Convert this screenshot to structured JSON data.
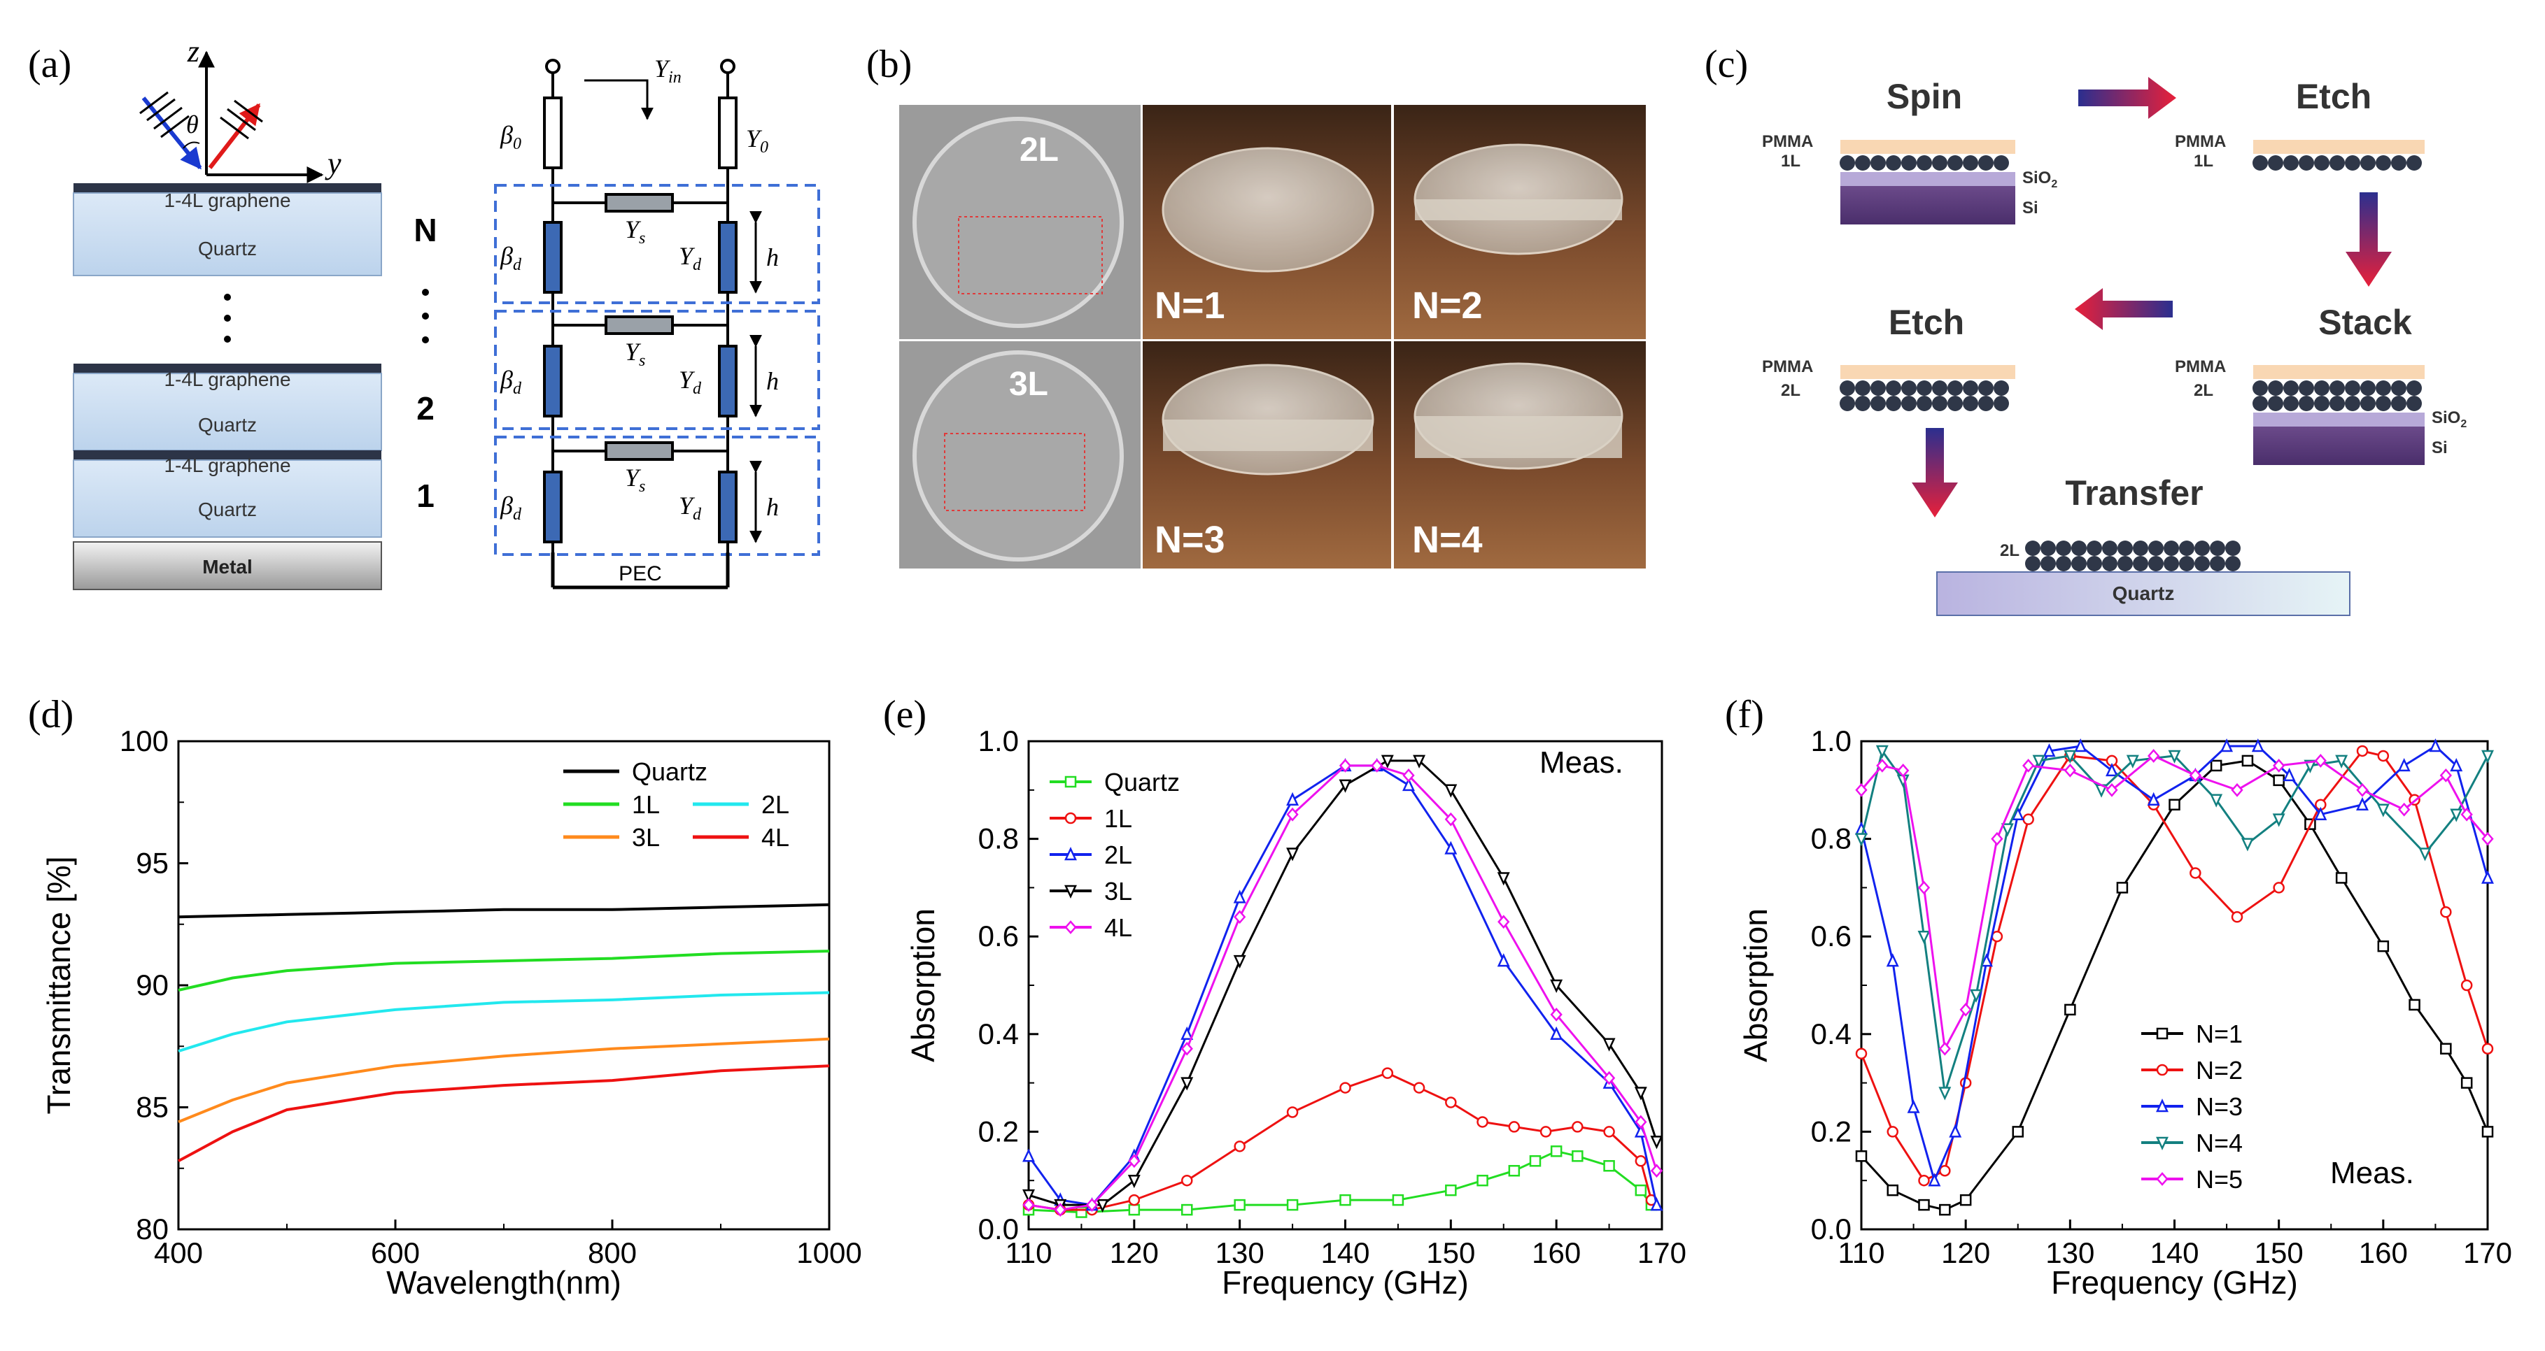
{
  "panel_labels": [
    "(a)",
    "(b)",
    "(c)",
    "(d)",
    "(e)",
    "(f)"
  ],
  "panel_a": {
    "axis_z": "z",
    "axis_y": "y",
    "angle": "θ",
    "layers": [
      {
        "graphene": "1-4L graphene",
        "substrate": "Quartz"
      },
      {
        "graphene": "1-4L graphene",
        "substrate": "Quartz"
      },
      {
        "graphene": "1-4L graphene",
        "substrate": "Quartz"
      }
    ],
    "metal": "Metal",
    "layer_numbers": [
      "N",
      "2",
      "1"
    ],
    "circuit": {
      "y_in": "Y",
      "y_in_sub": "in",
      "y0": "Y",
      "y0_sub": "0",
      "beta0": "β",
      "beta0_sub": "0",
      "beta_d": "β",
      "beta_d_sub": "d",
      "y_s": "Y",
      "y_s_sub": "s",
      "y_d": "Y",
      "y_d_sub": "d",
      "h": "h",
      "pec": "PEC"
    }
  },
  "panel_b": {
    "labels": [
      "2L",
      "3L",
      "N=1",
      "N=2",
      "N=3",
      "N=4"
    ]
  },
  "panel_c": {
    "steps": [
      "Spin",
      "Etch",
      "Stack",
      "Etch",
      "Transfer"
    ],
    "pmma": "PMMA",
    "one_l": "1L",
    "two_l": "2L",
    "sio2": "SiO",
    "sio2_sub": "2",
    "si": "Si",
    "quartz": "Quartz"
  },
  "chart_data": [
    {
      "panel": "(d)",
      "type": "line",
      "xlabel": "Wavelength(nm)",
      "ylabel": "Transmittance [%]",
      "xlim": [
        400,
        1000
      ],
      "ylim": [
        80,
        100
      ],
      "xticks": [
        400,
        600,
        800,
        1000
      ],
      "yticks": [
        80,
        85,
        90,
        95,
        100
      ],
      "legend": [
        "Quartz",
        "1L",
        "3L",
        "2L",
        "4L"
      ],
      "series": [
        {
          "name": "Quartz",
          "color": "#000000",
          "x": [
            400,
            500,
            600,
            700,
            800,
            900,
            1000
          ],
          "values": [
            92.8,
            92.9,
            93.0,
            93.1,
            93.1,
            93.2,
            93.3
          ]
        },
        {
          "name": "1L",
          "color": "#22dd22",
          "x": [
            400,
            450,
            500,
            600,
            700,
            800,
            900,
            1000
          ],
          "values": [
            89.8,
            90.3,
            90.6,
            90.9,
            91.0,
            91.1,
            91.3,
            91.4
          ]
        },
        {
          "name": "2L",
          "color": "#22e8ee",
          "x": [
            400,
            450,
            500,
            600,
            700,
            800,
            900,
            1000
          ],
          "values": [
            87.3,
            88.0,
            88.5,
            89.0,
            89.3,
            89.4,
            89.6,
            89.7
          ]
        },
        {
          "name": "3L",
          "color": "#ff8a1c",
          "x": [
            400,
            450,
            500,
            600,
            700,
            800,
            900,
            1000
          ],
          "values": [
            84.4,
            85.3,
            86.0,
            86.7,
            87.1,
            87.4,
            87.6,
            87.8
          ]
        },
        {
          "name": "4L",
          "color": "#ee1111",
          "x": [
            400,
            450,
            500,
            600,
            700,
            800,
            900,
            1000
          ],
          "values": [
            82.8,
            84.0,
            84.9,
            85.6,
            85.9,
            86.1,
            86.5,
            86.7
          ]
        }
      ]
    },
    {
      "panel": "(e)",
      "type": "line",
      "xlabel": "Frequency (GHz)",
      "ylabel": "Absorption",
      "annotation": "Meas.",
      "xlim": [
        110,
        170
      ],
      "ylim": [
        0,
        1.0
      ],
      "xticks": [
        110,
        120,
        130,
        140,
        150,
        160,
        170
      ],
      "yticks": [
        0.0,
        0.2,
        0.4,
        0.6,
        0.8,
        1.0
      ],
      "legend": [
        "Quartz",
        "1L",
        "2L",
        "3L",
        "4L"
      ],
      "series": [
        {
          "name": "Quartz",
          "color": "#22dd22",
          "marker": "square",
          "x": [
            110,
            115,
            120,
            125,
            130,
            135,
            140,
            145,
            150,
            153,
            156,
            158,
            160,
            162,
            165,
            168,
            169
          ],
          "values": [
            0.04,
            0.035,
            0.04,
            0.04,
            0.05,
            0.05,
            0.06,
            0.06,
            0.08,
            0.1,
            0.12,
            0.14,
            0.16,
            0.15,
            0.13,
            0.08,
            0.05
          ]
        },
        {
          "name": "1L",
          "color": "#ee1111",
          "marker": "circle",
          "x": [
            110,
            113,
            116,
            120,
            125,
            130,
            135,
            140,
            144,
            147,
            150,
            153,
            156,
            159,
            162,
            165,
            168,
            169
          ],
          "values": [
            0.05,
            0.04,
            0.04,
            0.06,
            0.1,
            0.17,
            0.24,
            0.29,
            0.32,
            0.29,
            0.26,
            0.22,
            0.21,
            0.2,
            0.21,
            0.2,
            0.14,
            0.06
          ]
        },
        {
          "name": "2L",
          "color": "#1122ee",
          "marker": "triangle-up",
          "x": [
            110,
            113,
            116,
            120,
            125,
            130,
            135,
            140,
            143,
            146,
            150,
            155,
            160,
            165,
            168,
            169.5
          ],
          "values": [
            0.15,
            0.06,
            0.05,
            0.15,
            0.4,
            0.68,
            0.88,
            0.95,
            0.95,
            0.91,
            0.78,
            0.55,
            0.4,
            0.3,
            0.2,
            0.05
          ]
        },
        {
          "name": "3L",
          "color": "#000000",
          "marker": "triangle-down",
          "x": [
            110,
            113,
            117,
            120,
            125,
            130,
            135,
            140,
            144,
            147,
            150,
            155,
            160,
            165,
            168,
            169.5
          ],
          "values": [
            0.07,
            0.05,
            0.05,
            0.1,
            0.3,
            0.55,
            0.77,
            0.91,
            0.96,
            0.96,
            0.9,
            0.72,
            0.5,
            0.38,
            0.28,
            0.18
          ]
        },
        {
          "name": "4L",
          "color": "#ee11ee",
          "marker": "diamond",
          "x": [
            110,
            113,
            116,
            120,
            125,
            130,
            135,
            140,
            143,
            146,
            150,
            155,
            160,
            165,
            168,
            169.5
          ],
          "values": [
            0.05,
            0.04,
            0.05,
            0.14,
            0.37,
            0.64,
            0.85,
            0.95,
            0.95,
            0.93,
            0.84,
            0.63,
            0.44,
            0.31,
            0.22,
            0.12
          ]
        }
      ]
    },
    {
      "panel": "(f)",
      "type": "line",
      "xlabel": "Frequency (GHz)",
      "ylabel": "Absorption",
      "annotation": "Meas.",
      "xlim": [
        110,
        170
      ],
      "ylim": [
        0,
        1.0
      ],
      "xticks": [
        110,
        120,
        130,
        140,
        150,
        160,
        170
      ],
      "yticks": [
        0.0,
        0.2,
        0.4,
        0.6,
        0.8,
        1.0
      ],
      "legend": [
        "N=1",
        "N=2",
        "N=3",
        "N=4",
        "N=5"
      ],
      "series": [
        {
          "name": "N=1",
          "color": "#000000",
          "marker": "square",
          "x": [
            110,
            113,
            116,
            118,
            120,
            125,
            130,
            135,
            140,
            144,
            147,
            150,
            153,
            156,
            160,
            163,
            166,
            168,
            170
          ],
          "values": [
            0.15,
            0.08,
            0.05,
            0.04,
            0.06,
            0.2,
            0.45,
            0.7,
            0.87,
            0.95,
            0.96,
            0.92,
            0.83,
            0.72,
            0.58,
            0.46,
            0.37,
            0.3,
            0.2
          ]
        },
        {
          "name": "N=2",
          "color": "#ee1111",
          "marker": "circle",
          "x": [
            110,
            113,
            116,
            118,
            120,
            123,
            126,
            130,
            134,
            138,
            142,
            146,
            150,
            154,
            158,
            160,
            163,
            166,
            168,
            170
          ],
          "values": [
            0.36,
            0.2,
            0.1,
            0.12,
            0.3,
            0.6,
            0.84,
            0.97,
            0.96,
            0.87,
            0.73,
            0.64,
            0.7,
            0.87,
            0.98,
            0.97,
            0.88,
            0.65,
            0.5,
            0.37
          ]
        },
        {
          "name": "N=3",
          "color": "#1122ee",
          "marker": "triangle-up",
          "x": [
            110,
            113,
            115,
            117,
            119,
            122,
            125,
            128,
            131,
            134,
            138,
            142,
            145,
            148,
            151,
            154,
            158,
            162,
            165,
            167,
            170
          ],
          "values": [
            0.82,
            0.55,
            0.25,
            0.1,
            0.2,
            0.55,
            0.85,
            0.98,
            0.99,
            0.94,
            0.88,
            0.93,
            0.99,
            0.99,
            0.93,
            0.85,
            0.87,
            0.95,
            0.99,
            0.95,
            0.72
          ]
        },
        {
          "name": "N=4",
          "color": "#138080",
          "marker": "triangle-down",
          "x": [
            110,
            112,
            114,
            116,
            118,
            121,
            124,
            127,
            130,
            133,
            136,
            140,
            144,
            147,
            150,
            153,
            156,
            160,
            164,
            167,
            170
          ],
          "values": [
            0.8,
            0.98,
            0.92,
            0.6,
            0.28,
            0.48,
            0.82,
            0.96,
            0.97,
            0.9,
            0.96,
            0.97,
            0.88,
            0.79,
            0.84,
            0.95,
            0.96,
            0.86,
            0.77,
            0.85,
            0.97
          ]
        },
        {
          "name": "N=5",
          "color": "#ee11ee",
          "marker": "diamond",
          "x": [
            110,
            112,
            114,
            116,
            118,
            120,
            123,
            126,
            130,
            134,
            138,
            142,
            146,
            150,
            154,
            158,
            162,
            166,
            168,
            170
          ],
          "values": [
            0.9,
            0.95,
            0.94,
            0.7,
            0.37,
            0.45,
            0.8,
            0.95,
            0.94,
            0.9,
            0.97,
            0.93,
            0.9,
            0.95,
            0.96,
            0.9,
            0.86,
            0.93,
            0.85,
            0.8
          ]
        }
      ]
    }
  ]
}
